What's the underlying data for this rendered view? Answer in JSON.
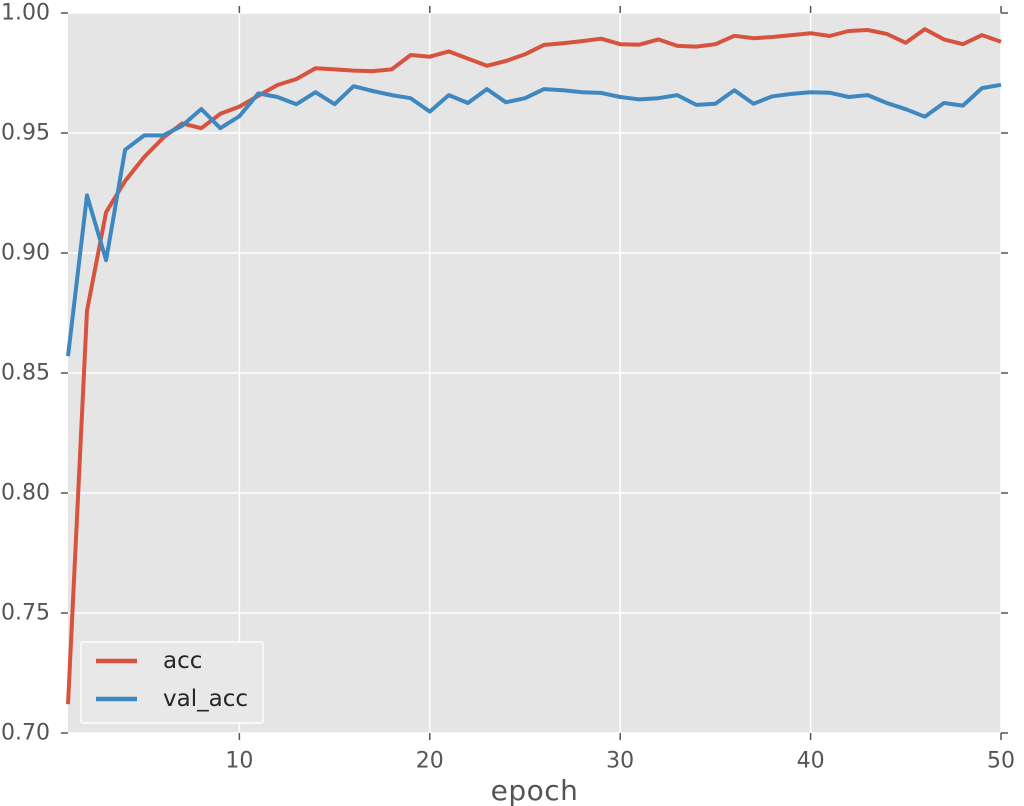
{
  "chart_data": {
    "type": "line",
    "title": "",
    "xlabel": "epoch",
    "ylabel": "",
    "xlim": [
      1,
      50
    ],
    "ylim": [
      0.7,
      1.0
    ],
    "x_ticks": [
      10,
      20,
      30,
      40,
      50
    ],
    "x_tick_labels": [
      "10",
      "20",
      "30",
      "40",
      "50"
    ],
    "y_ticks": [
      0.7,
      0.75,
      0.8,
      0.85,
      0.9,
      0.95,
      1.0
    ],
    "y_tick_labels": [
      "0.70",
      "0.75",
      "0.80",
      "0.85",
      "0.90",
      "0.95",
      "1.00"
    ],
    "grid": true,
    "plot_background": "#e5e5e5",
    "gridline_color": "#ffffff",
    "tick_color": "#555555",
    "tick_label_color": "#555555",
    "axis_label_color": "#555555",
    "legend": {
      "position": "lower left",
      "fill": "#e8e8e8",
      "border_color": "#ffffff",
      "text_color": "#262626",
      "entries": [
        "acc",
        "val_acc"
      ]
    },
    "epochs": [
      1,
      2,
      3,
      4,
      5,
      6,
      7,
      8,
      9,
      10,
      11,
      12,
      13,
      14,
      15,
      16,
      17,
      18,
      19,
      20,
      21,
      22,
      23,
      24,
      25,
      26,
      27,
      28,
      29,
      30,
      31,
      32,
      33,
      34,
      35,
      36,
      37,
      38,
      39,
      40,
      41,
      42,
      43,
      44,
      45,
      46,
      47,
      48,
      49,
      50
    ],
    "series": [
      {
        "name": "acc",
        "color": "#d6533f",
        "values": [
          0.712,
          0.876,
          0.917,
          0.93,
          0.94,
          0.948,
          0.954,
          0.952,
          0.958,
          0.961,
          0.9655,
          0.97,
          0.9725,
          0.977,
          0.9765,
          0.976,
          0.9758,
          0.9765,
          0.9825,
          0.9818,
          0.984,
          0.981,
          0.978,
          0.98,
          0.9828,
          0.9867,
          0.9874,
          0.9883,
          0.9893,
          0.987,
          0.9868,
          0.989,
          0.9863,
          0.986,
          0.987,
          0.9905,
          0.9895,
          0.99,
          0.9908,
          0.9916,
          0.9904,
          0.9925,
          0.9929,
          0.9913,
          0.9876,
          0.9933,
          0.989,
          0.987,
          0.9908,
          0.988
        ]
      },
      {
        "name": "val_acc",
        "color": "#3f88bf",
        "values": [
          0.857,
          0.924,
          0.897,
          0.943,
          0.949,
          0.949,
          0.953,
          0.96,
          0.952,
          0.957,
          0.9665,
          0.965,
          0.962,
          0.967,
          0.962,
          0.9695,
          0.9675,
          0.9658,
          0.9645,
          0.9589,
          0.9658,
          0.9625,
          0.9683,
          0.9628,
          0.9645,
          0.9683,
          0.9678,
          0.967,
          0.9667,
          0.965,
          0.964,
          0.9645,
          0.9658,
          0.9617,
          0.9622,
          0.9678,
          0.9622,
          0.9653,
          0.9663,
          0.967,
          0.9668,
          0.965,
          0.9658,
          0.9625,
          0.9599,
          0.9568,
          0.9625,
          0.9614,
          0.9687,
          0.9701
        ]
      }
    ]
  }
}
